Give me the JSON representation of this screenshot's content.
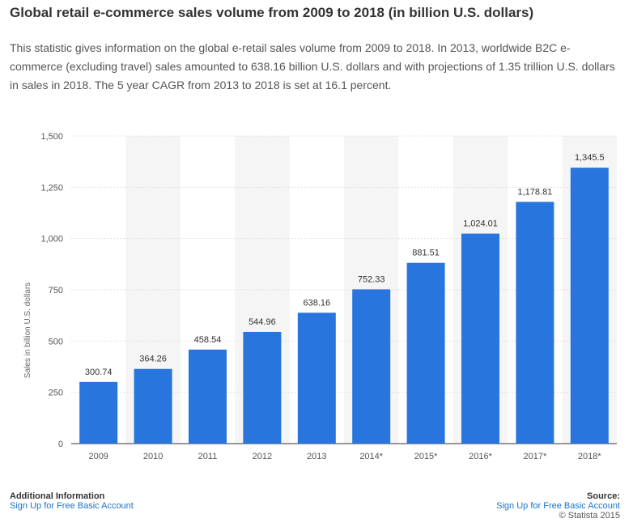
{
  "page": {
    "title": "Global retail e-commerce sales volume from 2009 to 2018 (in billion U.S. dollars)",
    "description": "This statistic gives information on the global e-retail sales volume from 2009 to 2018. In 2013, worldwide B2C e-commerce (excluding travel) sales amounted to 638.16 billion U.S. dollars and with projections of 1.35 trillion U.S. dollars in sales in 2018. The 5 year CAGR from 2013 to 2018 is set at 16.1 percent."
  },
  "chart_data": {
    "type": "bar",
    "title": "",
    "xlabel": "",
    "ylabel": "Sales in billion U.S. dollars",
    "categories": [
      "2009",
      "2010",
      "2011",
      "2012",
      "2013",
      "2014*",
      "2015*",
      "2016*",
      "2017*",
      "2018*"
    ],
    "values": [
      300.74,
      364.26,
      458.54,
      544.96,
      638.16,
      752.33,
      881.51,
      1024.01,
      1178.81,
      1345.5
    ],
    "value_labels": [
      "300.74",
      "364.26",
      "458.54",
      "544.96",
      "638.16",
      "752.33",
      "881.51",
      "1,024.01",
      "1,178.81",
      "1,345.5"
    ],
    "ylim": [
      0,
      1500
    ],
    "yticks": [
      0,
      250,
      500,
      750,
      1000,
      1250,
      1500
    ],
    "ytick_labels": [
      "0",
      "250",
      "500",
      "750",
      "1,000",
      "1,250",
      "1,500"
    ],
    "grid": true,
    "alternating_column_shading": true,
    "bar_color": "#2876dd",
    "shade_color": "#f5f5f5",
    "grid_color": "#e0e0e0"
  },
  "footer": {
    "left_heading": "Additional Information",
    "left_link": "Sign Up for Free Basic Account",
    "right_heading": "Source:",
    "right_link": "Sign Up for Free Basic Account",
    "copyright": "© Statista 2015"
  }
}
